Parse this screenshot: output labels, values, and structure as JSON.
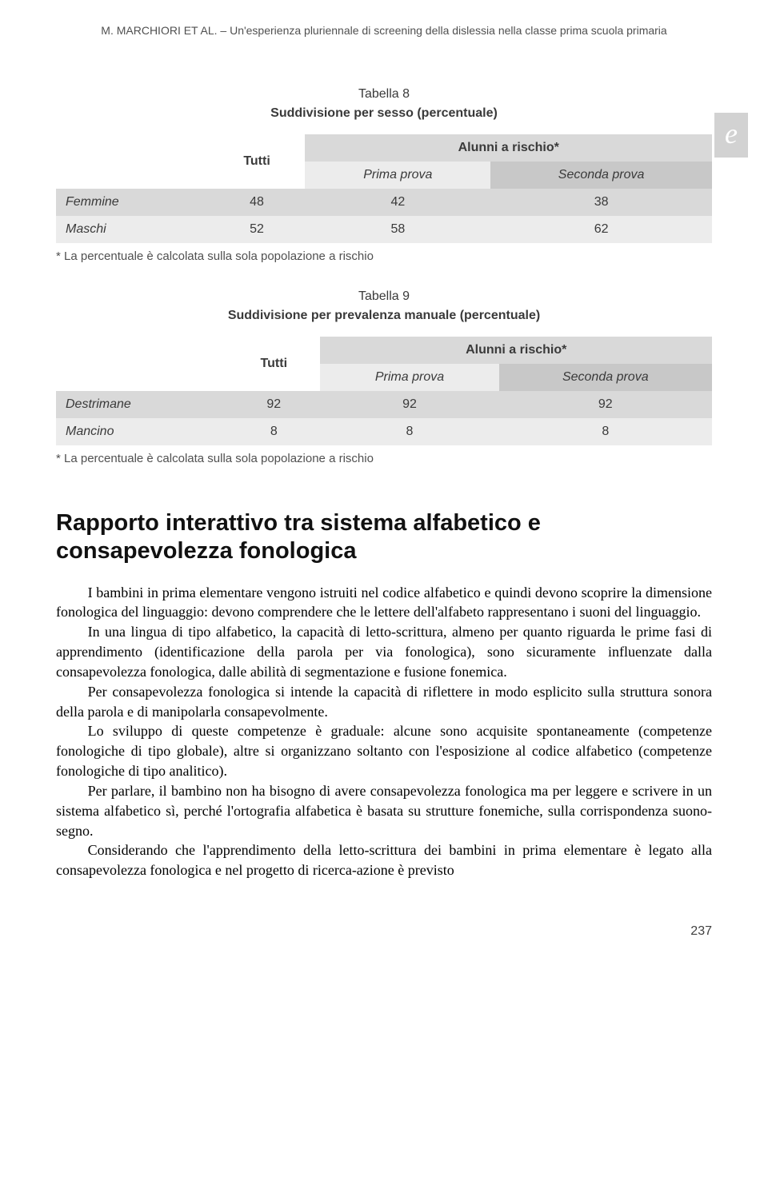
{
  "running_head": {
    "authors": "M. MARCHIORI ET AL.",
    "sep": " – ",
    "title": "Un'esperienza pluriennale di screening della dislessia nella classe prima scuola primaria"
  },
  "e_badge": "e",
  "table8": {
    "number": "Tabella 8",
    "title": "Suddivisione per sesso (percentuale)",
    "col_tutti": "Tutti",
    "col_group": "Alunni a rischio*",
    "col_sub1": "Prima prova",
    "col_sub2": "Seconda prova",
    "rows": [
      {
        "label": "Femmine",
        "tutti": "48",
        "p1": "42",
        "p2": "38"
      },
      {
        "label": "Maschi",
        "tutti": "52",
        "p1": "58",
        "p2": "62"
      }
    ],
    "note": "* La percentuale è calcolata sulla sola popolazione a rischio"
  },
  "table9": {
    "number": "Tabella 9",
    "title": "Suddivisione per prevalenza manuale (percentuale)",
    "col_tutti": "Tutti",
    "col_group": "Alunni a rischio*",
    "col_sub1": "Prima prova",
    "col_sub2": "Seconda prova",
    "rows": [
      {
        "label": "Destrimane",
        "tutti": "92",
        "p1": "92",
        "p2": "92"
      },
      {
        "label": "Mancino",
        "tutti": "8",
        "p1": "8",
        "p2": "8"
      }
    ],
    "note": "* La percentuale è calcolata sulla sola popolazione a rischio"
  },
  "section_heading": "Rapporto interattivo tra sistema alfabetico e consapevolezza fonologica",
  "paragraphs": [
    "I bambini in prima elementare vengono istruiti nel codice alfabetico e quindi devono scoprire la dimensione fonologica del linguaggio: devono comprendere che le lettere dell'alfabeto rappresentano i suoni del linguaggio.",
    "In una lingua di tipo alfabetico, la capacità di letto-scrittura, almeno per quanto riguarda le prime fasi di apprendimento (identificazione della parola per via fonologica), sono sicuramente influenzate dalla consapevolezza fonologica, dalle abilità di segmentazione e fusione fonemica.",
    "Per consapevolezza fonologica si intende la capacità di riflettere in modo esplicito sulla struttura sonora della parola e di manipolarla consapevolmente.",
    "Lo sviluppo di queste competenze è graduale: alcune sono acquisite spontaneamente (competenze fonologiche di tipo globale), altre si organizzano soltanto con l'esposizione al codice alfabetico (competenze fonologiche di tipo analitico).",
    "Per parlare, il bambino non ha bisogno di avere consapevolezza fonologica ma per leggere e scrivere in un sistema alfabetico sì, perché l'ortografia alfabetica è basata su strutture fonemiche, sulla corrispondenza suono-segno.",
    "Considerando che l'apprendimento della letto-scrittura dei bambini in prima elementare è legato alla consapevolezza fonologica e nel progetto di ricerca-azione è previsto"
  ],
  "page_number": "237",
  "style": {
    "table_bg_dark": "#c8c8c8",
    "table_bg_mid": "#d9d9d9",
    "table_bg_light": "#ececec",
    "table_bg_white": "#ffffff",
    "heading_font": "Arial",
    "body_font": "Georgia",
    "heading_fontsize_pt": 22,
    "body_fontsize_pt": 13
  }
}
